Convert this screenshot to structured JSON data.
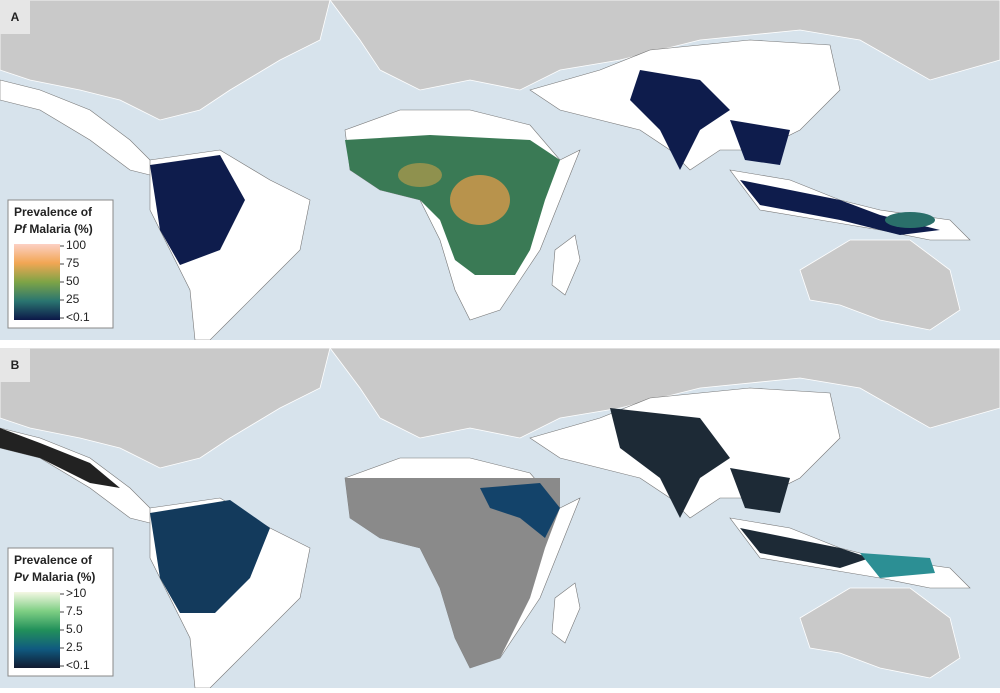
{
  "panels": [
    {
      "label": "A",
      "legend": {
        "title_line1": "Prevalence of",
        "title_italic": "Pf",
        "title_rest": "Malaria (%)",
        "ticks": [
          "100",
          "75",
          "50",
          "25",
          "<0.1"
        ]
      }
    },
    {
      "label": "B",
      "legend": {
        "title_line1": "Prevalence of",
        "title_italic": "Pv",
        "title_rest": "Malaria (%)",
        "ticks": [
          ">10",
          "7.5",
          "5.0",
          "2.5",
          "<0.1"
        ]
      }
    }
  ]
}
